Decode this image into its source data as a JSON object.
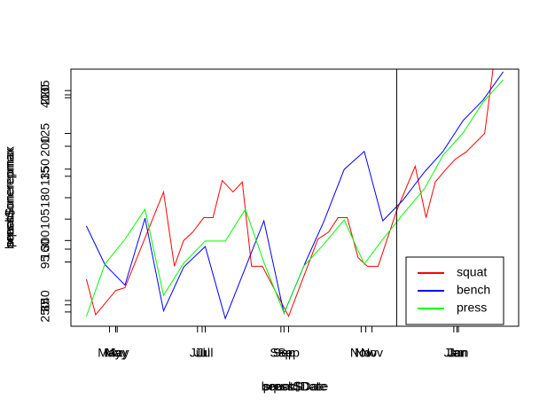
{
  "chart_data": [
    {
      "type": "line",
      "xlabel": "squat$Date",
      "ylabel": "squat$onerepmax",
      "x": [
        10,
        16,
        29,
        35,
        60,
        67,
        73,
        79,
        86,
        92,
        98,
        105,
        111,
        117,
        124,
        141,
        160,
        167,
        173,
        179,
        186,
        192,
        199,
        211,
        223,
        230,
        236,
        243,
        249,
        256,
        268,
        274
      ],
      "series": [
        {
          "name": "squat",
          "color": "#ff0000",
          "values": [
            273,
            248,
            265,
            267,
            334,
            282,
            300,
            306,
            316,
            316,
            342,
            334,
            341,
            282,
            282,
            247,
            301,
            306,
            316,
            316,
            288,
            282,
            282,
            321,
            352,
            316,
            341,
            350,
            357,
            362,
            375,
            425
          ]
        }
      ],
      "xlim": [
        0,
        290
      ],
      "xticks": [
        {
          "value": 25,
          "label": "May"
        },
        {
          "value": 85,
          "label": "Jul"
        },
        {
          "value": 138,
          "label": "Sep"
        },
        {
          "value": 191,
          "label": "Nov"
        },
        {
          "value": 250,
          "label": "Jan"
        }
      ],
      "ylim": [
        240,
        420
      ],
      "yticks": [
        250,
        300,
        350,
        400
      ],
      "vline": 211,
      "legend": "bottomright"
    },
    {
      "type": "line",
      "xlabel": "bench$Date",
      "ylabel": "bench$onerepmax",
      "x": [
        10,
        22,
        35,
        48,
        60,
        73,
        87,
        100,
        125,
        138,
        152,
        164,
        177,
        190,
        202,
        215,
        229,
        241,
        254,
        267,
        280
      ],
      "series": [
        {
          "name": "bench",
          "color": "#0000ff",
          "values": [
            169,
            154,
            146,
            172,
            136,
            153,
            161,
            133,
            171,
            135,
            155,
            171,
            191,
            198,
            171,
            179,
            190,
            198,
            210,
            218,
            229
          ]
        }
      ],
      "xlim": [
        0,
        290
      ],
      "xticks": [
        {
          "value": 30,
          "label": "May"
        },
        {
          "value": 87,
          "label": "Jul"
        },
        {
          "value": 141,
          "label": "Sep"
        },
        {
          "value": 195,
          "label": "Nov"
        },
        {
          "value": 248,
          "label": "Jan"
        }
      ],
      "ylim": [
        130,
        230
      ],
      "yticks": [
        140,
        160,
        180,
        200,
        220
      ]
    },
    {
      "type": "line",
      "xlabel": "press$Date",
      "ylabel": "press$onerepmax",
      "x": [
        10,
        22,
        35,
        48,
        60,
        73,
        87,
        100,
        113,
        125,
        138,
        151,
        164,
        177,
        190,
        202,
        215,
        229,
        241,
        254,
        267,
        280
      ],
      "series": [
        {
          "name": "press",
          "color": "#00ff00",
          "values": [
            82.3,
            94.5,
            100.3,
            107.3,
            87.2,
            94.7,
            99.9,
            99.9,
            107.3,
            94.9,
            83.1,
            94.1,
            99.2,
            104.8,
            94.5,
            100.3,
            106.1,
            112.1,
            119.9,
            125.1,
            132.3,
            137.5
          ]
        }
      ],
      "xlim": [
        0,
        290
      ],
      "xticks": [
        {
          "value": 29,
          "label": "May"
        },
        {
          "value": 82,
          "label": "Jul"
        },
        {
          "value": 136,
          "label": "Sep"
        },
        {
          "value": 188,
          "label": "Nov"
        },
        {
          "value": 251,
          "label": "Jan"
        }
      ],
      "ylim": [
        80,
        140
      ],
      "yticks": [
        85,
        95,
        105,
        115,
        125,
        135
      ]
    }
  ]
}
